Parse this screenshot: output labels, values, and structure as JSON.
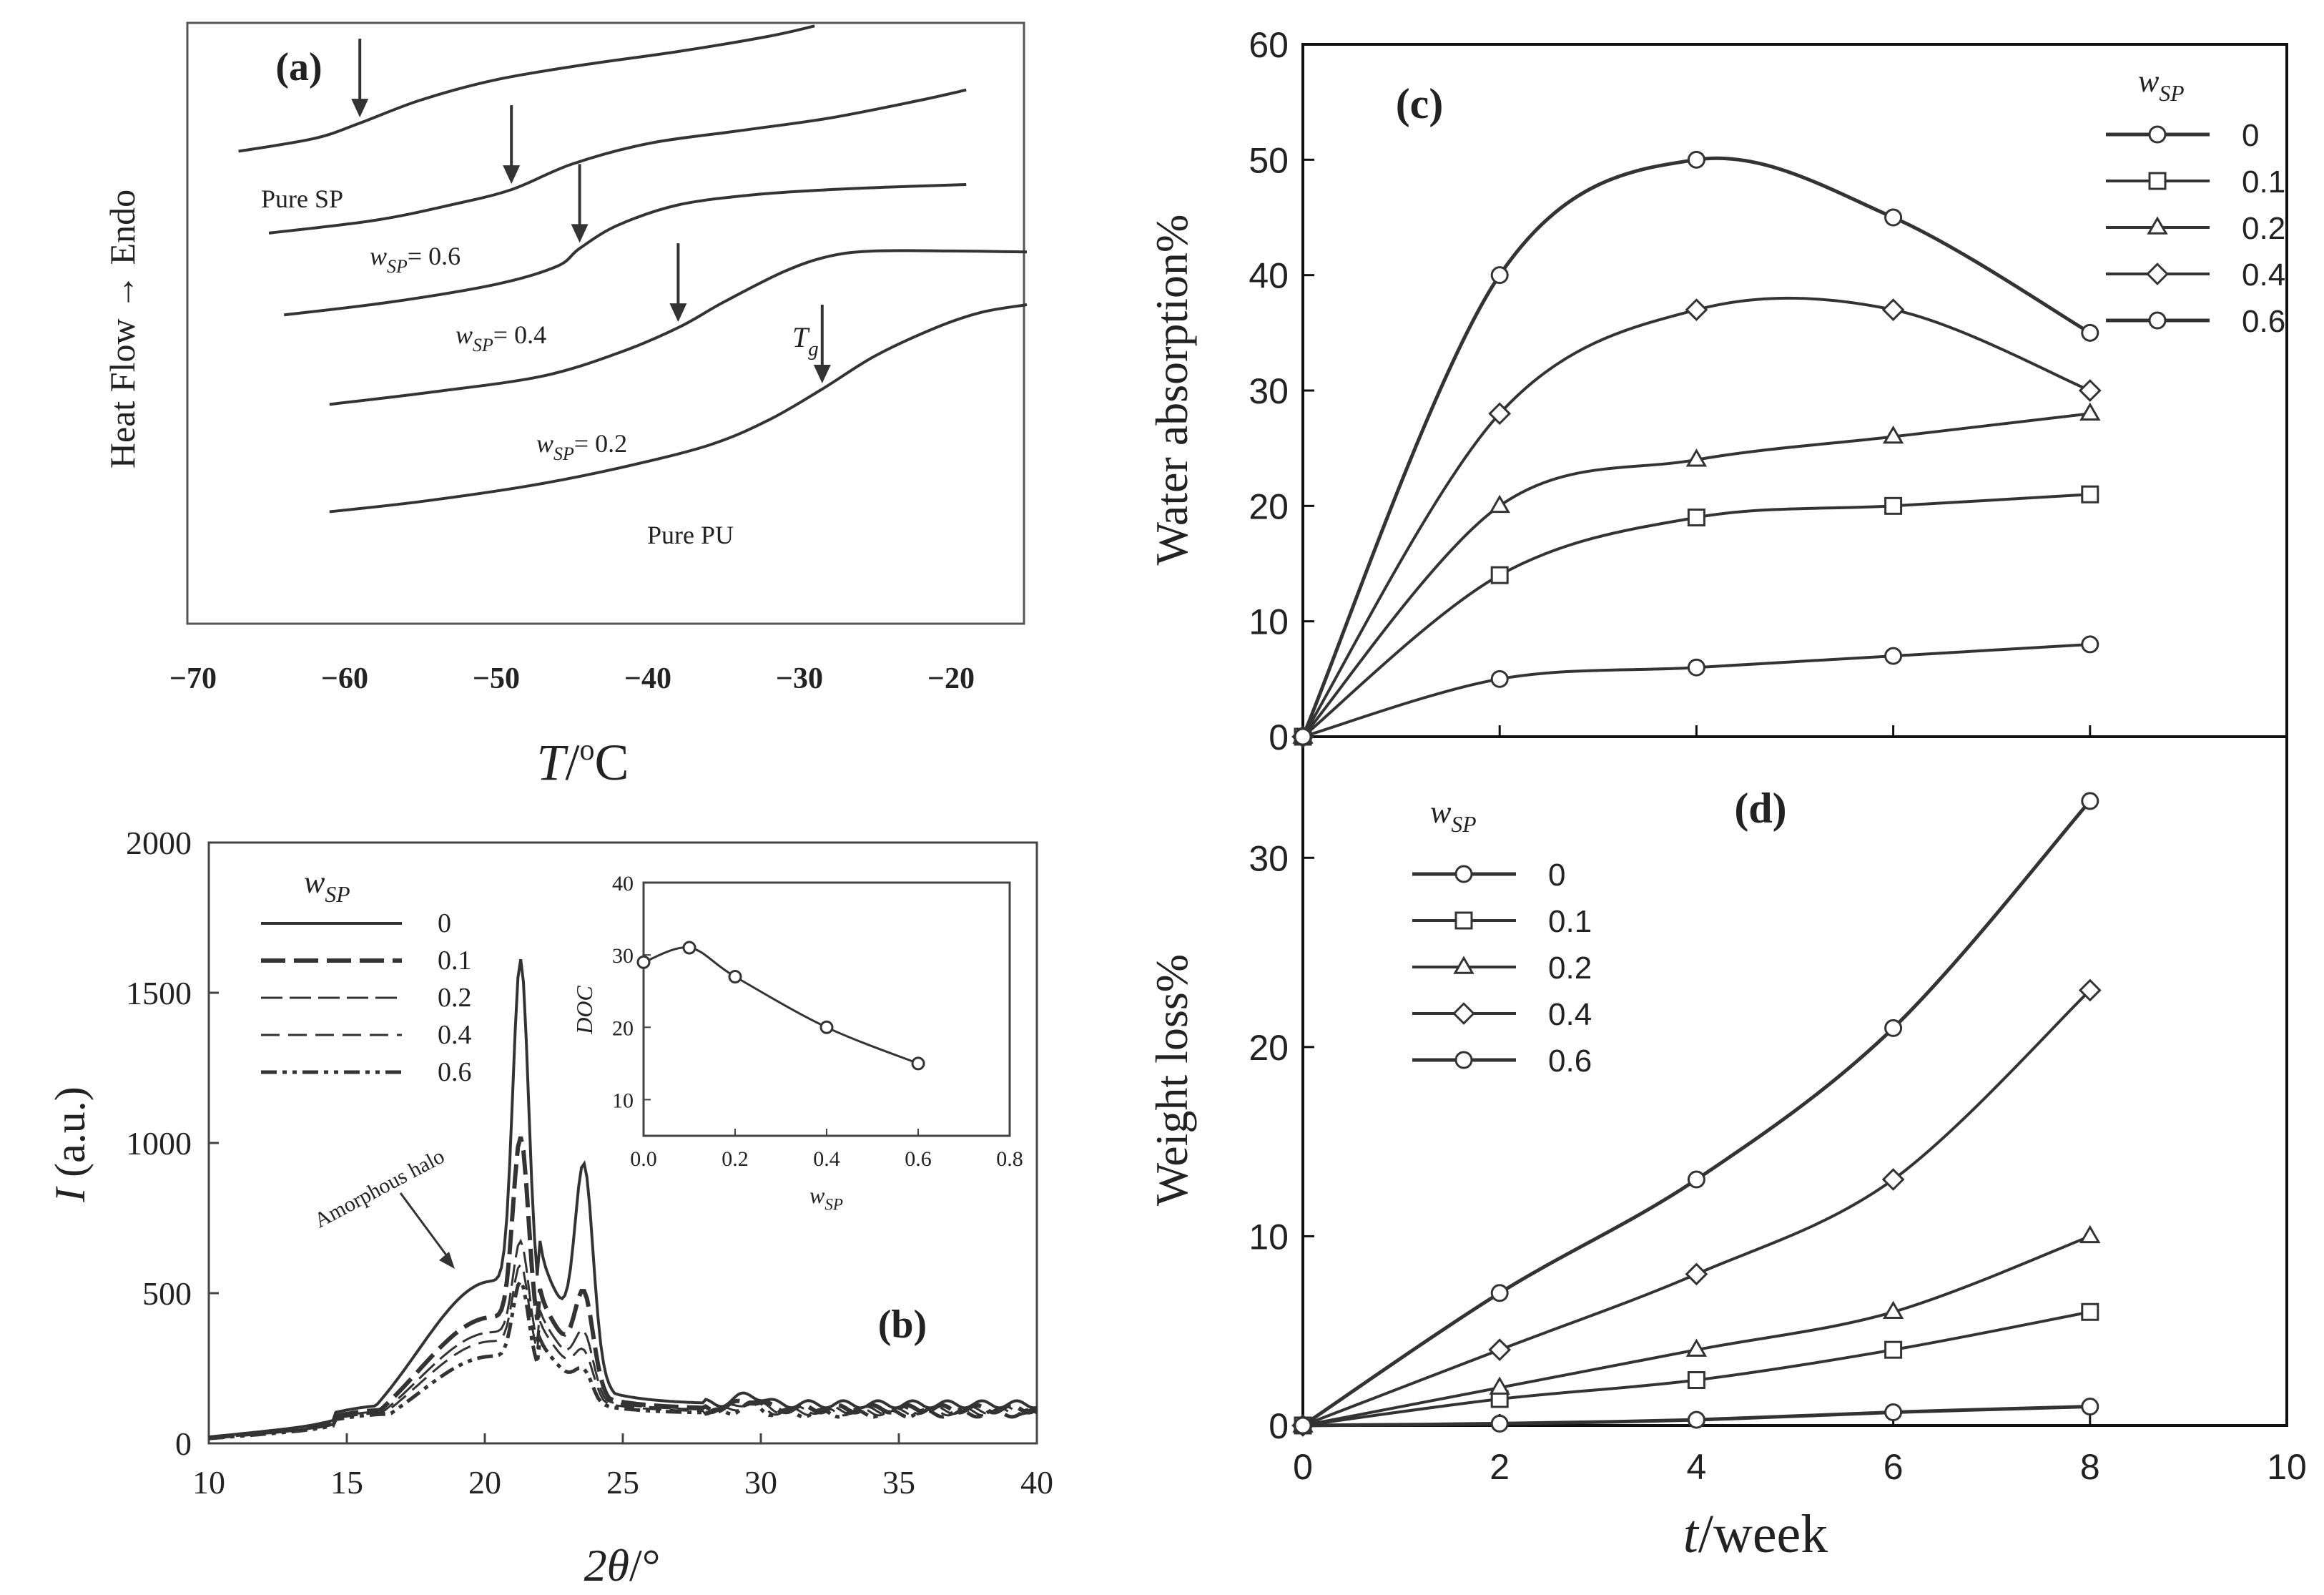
{
  "figure": {
    "colors": {
      "line": "#333333",
      "axis": "#222222",
      "marker_fill": "#ffffff"
    }
  },
  "chart_data": [
    {
      "id": "a",
      "panel_label": "(a)",
      "type": "line",
      "xlabel": "T/°C",
      "ylabel": "Heat Flow → Endo",
      "xlim": [
        -70,
        -15
      ],
      "x_ticks": [
        "−70",
        "−60",
        "−50",
        "−40",
        "−30",
        "−20"
      ],
      "x_tick_values": [
        -70,
        -60,
        -50,
        -40,
        -30,
        -20
      ],
      "tg_label": "T_g",
      "series": [
        {
          "name": "Pure SP",
          "tg": -59,
          "x": [
            -67,
            -62,
            -59,
            -55,
            -50,
            -44,
            -38,
            -32,
            -29
          ],
          "y": [
            9.35,
            9.6,
            9.9,
            10.35,
            10.75,
            11.05,
            11.3,
            11.6,
            11.8
          ]
        },
        {
          "name": "w_SP= 0.6",
          "tg": -49,
          "x": [
            -65,
            -58,
            -53,
            -49,
            -45,
            -40,
            -34,
            -28,
            -22,
            -19
          ],
          "y": [
            7.75,
            8.0,
            8.3,
            8.6,
            9.1,
            9.5,
            9.75,
            10.0,
            10.35,
            10.55
          ]
        },
        {
          "name": "w_SP= 0.4",
          "tg": -44.5,
          "x": [
            -64,
            -57,
            -50,
            -46,
            -44.5,
            -42,
            -38,
            -33,
            -28,
            -24,
            -19
          ],
          "y": [
            6.15,
            6.4,
            6.75,
            7.1,
            7.45,
            7.9,
            8.3,
            8.5,
            8.6,
            8.65,
            8.7
          ]
        },
        {
          "name": "w_SP= 0.2",
          "tg": -38,
          "x": [
            -61,
            -54,
            -47,
            -42,
            -38,
            -35,
            -31,
            -28,
            -25,
            -20,
            -15
          ],
          "y": [
            4.4,
            4.65,
            4.95,
            5.4,
            5.9,
            6.4,
            7.0,
            7.3,
            7.4,
            7.4,
            7.38
          ]
        },
        {
          "name": "Pure PU",
          "tg": -28.5,
          "x": [
            -61,
            -55,
            -48,
            -42,
            -36,
            -32,
            -28.5,
            -25,
            -21,
            -18,
            -15
          ],
          "y": [
            2.3,
            2.5,
            2.8,
            3.15,
            3.6,
            4.1,
            4.7,
            5.35,
            5.9,
            6.2,
            6.35
          ]
        }
      ],
      "annotations": [
        "Pure SP",
        "w_SP= 0.6",
        "w_SP= 0.4",
        "w_SP= 0.2",
        "Pure PU"
      ]
    },
    {
      "id": "b",
      "panel_label": "(b)",
      "type": "line",
      "xlabel": "2θ/°",
      "ylabel": "I (a.u.)",
      "xlim": [
        10,
        40
      ],
      "ylim": [
        0,
        2000
      ],
      "x_ticks": [
        "10",
        "15",
        "20",
        "25",
        "30",
        "35",
        "40"
      ],
      "y_ticks": [
        "0",
        "500",
        "1000",
        "1500",
        "2000"
      ],
      "legend_title": "w_SP",
      "annotation": "Amorphous halo",
      "series": [
        {
          "name": "0",
          "peak1": 1650,
          "peak2": 870,
          "halo": 540,
          "base": 130
        },
        {
          "name": "0.1",
          "peak1": 1050,
          "peak2": 500,
          "halo": 420,
          "base": 115
        },
        {
          "name": "0.2",
          "peak1": 700,
          "peak2": 390,
          "halo": 370,
          "base": 110
        },
        {
          "name": "0.4",
          "peak1": 620,
          "peak2": 340,
          "halo": 340,
          "base": 105
        },
        {
          "name": "0.6",
          "peak1": 560,
          "peak2": 300,
          "halo": 290,
          "base": 100
        }
      ],
      "inset": {
        "type": "line",
        "xlabel": "w_SP",
        "ylabel": "DOC",
        "xlim": [
          0,
          0.8
        ],
        "ylim": [
          5,
          40
        ],
        "x_ticks": [
          "0.0",
          "0.2",
          "0.4",
          "0.6",
          "0.8"
        ],
        "y_ticks": [
          "10",
          "20",
          "30",
          "40"
        ],
        "x": [
          0,
          0.1,
          0.2,
          0.4,
          0.6
        ],
        "y": [
          29,
          31,
          27,
          20,
          15
        ]
      }
    },
    {
      "id": "c",
      "panel_label": "(c)",
      "type": "line",
      "ylabel": "Water absorption%",
      "xlim": [
        0,
        10
      ],
      "ylim": [
        0,
        60
      ],
      "y_ticks": [
        "0",
        "10",
        "20",
        "30",
        "40",
        "50",
        "60"
      ],
      "legend_title": "w_SP",
      "x": [
        0,
        2,
        4,
        6,
        8
      ],
      "series": [
        {
          "name": "0",
          "marker": "circle",
          "values": [
            0,
            5,
            6,
            7,
            8
          ]
        },
        {
          "name": "0.1",
          "marker": "square",
          "values": [
            0,
            14,
            19,
            20,
            21
          ]
        },
        {
          "name": "0.2",
          "marker": "triangle",
          "values": [
            0,
            20,
            24,
            26,
            28
          ]
        },
        {
          "name": "0.4",
          "marker": "diamond",
          "values": [
            0,
            28,
            37,
            37,
            30
          ]
        },
        {
          "name": "0.6",
          "marker": "circle",
          "values": [
            0,
            40,
            50,
            45,
            35
          ]
        }
      ]
    },
    {
      "id": "d",
      "panel_label": "(d)",
      "type": "line",
      "xlabel": "t/week",
      "ylabel": "Weight loss%",
      "xlim": [
        0,
        10
      ],
      "ylim": [
        0,
        35
      ],
      "x_ticks": [
        "0",
        "2",
        "4",
        "6",
        "8",
        "10"
      ],
      "y_ticks": [
        "0",
        "10",
        "20",
        "30"
      ],
      "legend_title": "w_SP",
      "x": [
        0,
        2,
        4,
        6,
        8
      ],
      "series": [
        {
          "name": "0",
          "marker": "circle",
          "values": [
            0,
            0.1,
            0.3,
            0.7,
            1.0
          ]
        },
        {
          "name": "0.1",
          "marker": "square",
          "values": [
            0,
            1.4,
            2.4,
            4.0,
            6.0
          ]
        },
        {
          "name": "0.2",
          "marker": "triangle",
          "values": [
            0,
            2.0,
            4.0,
            6.0,
            10.0
          ]
        },
        {
          "name": "0.4",
          "marker": "diamond",
          "values": [
            0,
            4.0,
            8.0,
            13.0,
            23.0
          ]
        },
        {
          "name": "0.6",
          "marker": "circle",
          "values": [
            0,
            7.0,
            13.0,
            21.0,
            33.0
          ]
        }
      ]
    }
  ]
}
